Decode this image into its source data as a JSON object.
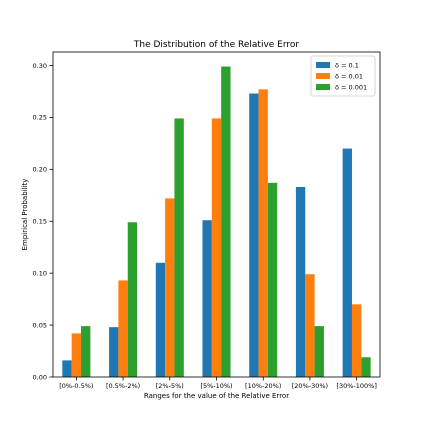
{
  "chart_data": {
    "type": "bar",
    "title": "The Distribution of the Relative Error",
    "xlabel": "Ranges for the value of the Relative Error",
    "ylabel": "Empirical Probability",
    "categories": [
      "[0%-0.5%)",
      "[0.5%-2%)",
      "[2%-5%)",
      "[5%-10%)",
      "[10%-20%)",
      "[20%-30%)",
      "[30%-100%]"
    ],
    "series": [
      {
        "name": "δ = 0.1",
        "color": "#1f77b4",
        "values": [
          0.016,
          0.048,
          0.11,
          0.151,
          0.273,
          0.183,
          0.22
        ]
      },
      {
        "name": "δ = 0.01",
        "color": "#ff7f0e",
        "values": [
          0.042,
          0.093,
          0.172,
          0.249,
          0.277,
          0.099,
          0.07
        ]
      },
      {
        "name": "δ = 0.001",
        "color": "#2ca02c",
        "values": [
          0.049,
          0.149,
          0.249,
          0.299,
          0.187,
          0.049,
          0.019
        ]
      }
    ],
    "ylim": [
      0,
      0.313
    ],
    "yticks": [
      "0.00",
      "0.05",
      "0.10",
      "0.15",
      "0.20",
      "0.25",
      "0.30"
    ],
    "grid": false,
    "legend": "top-right"
  }
}
